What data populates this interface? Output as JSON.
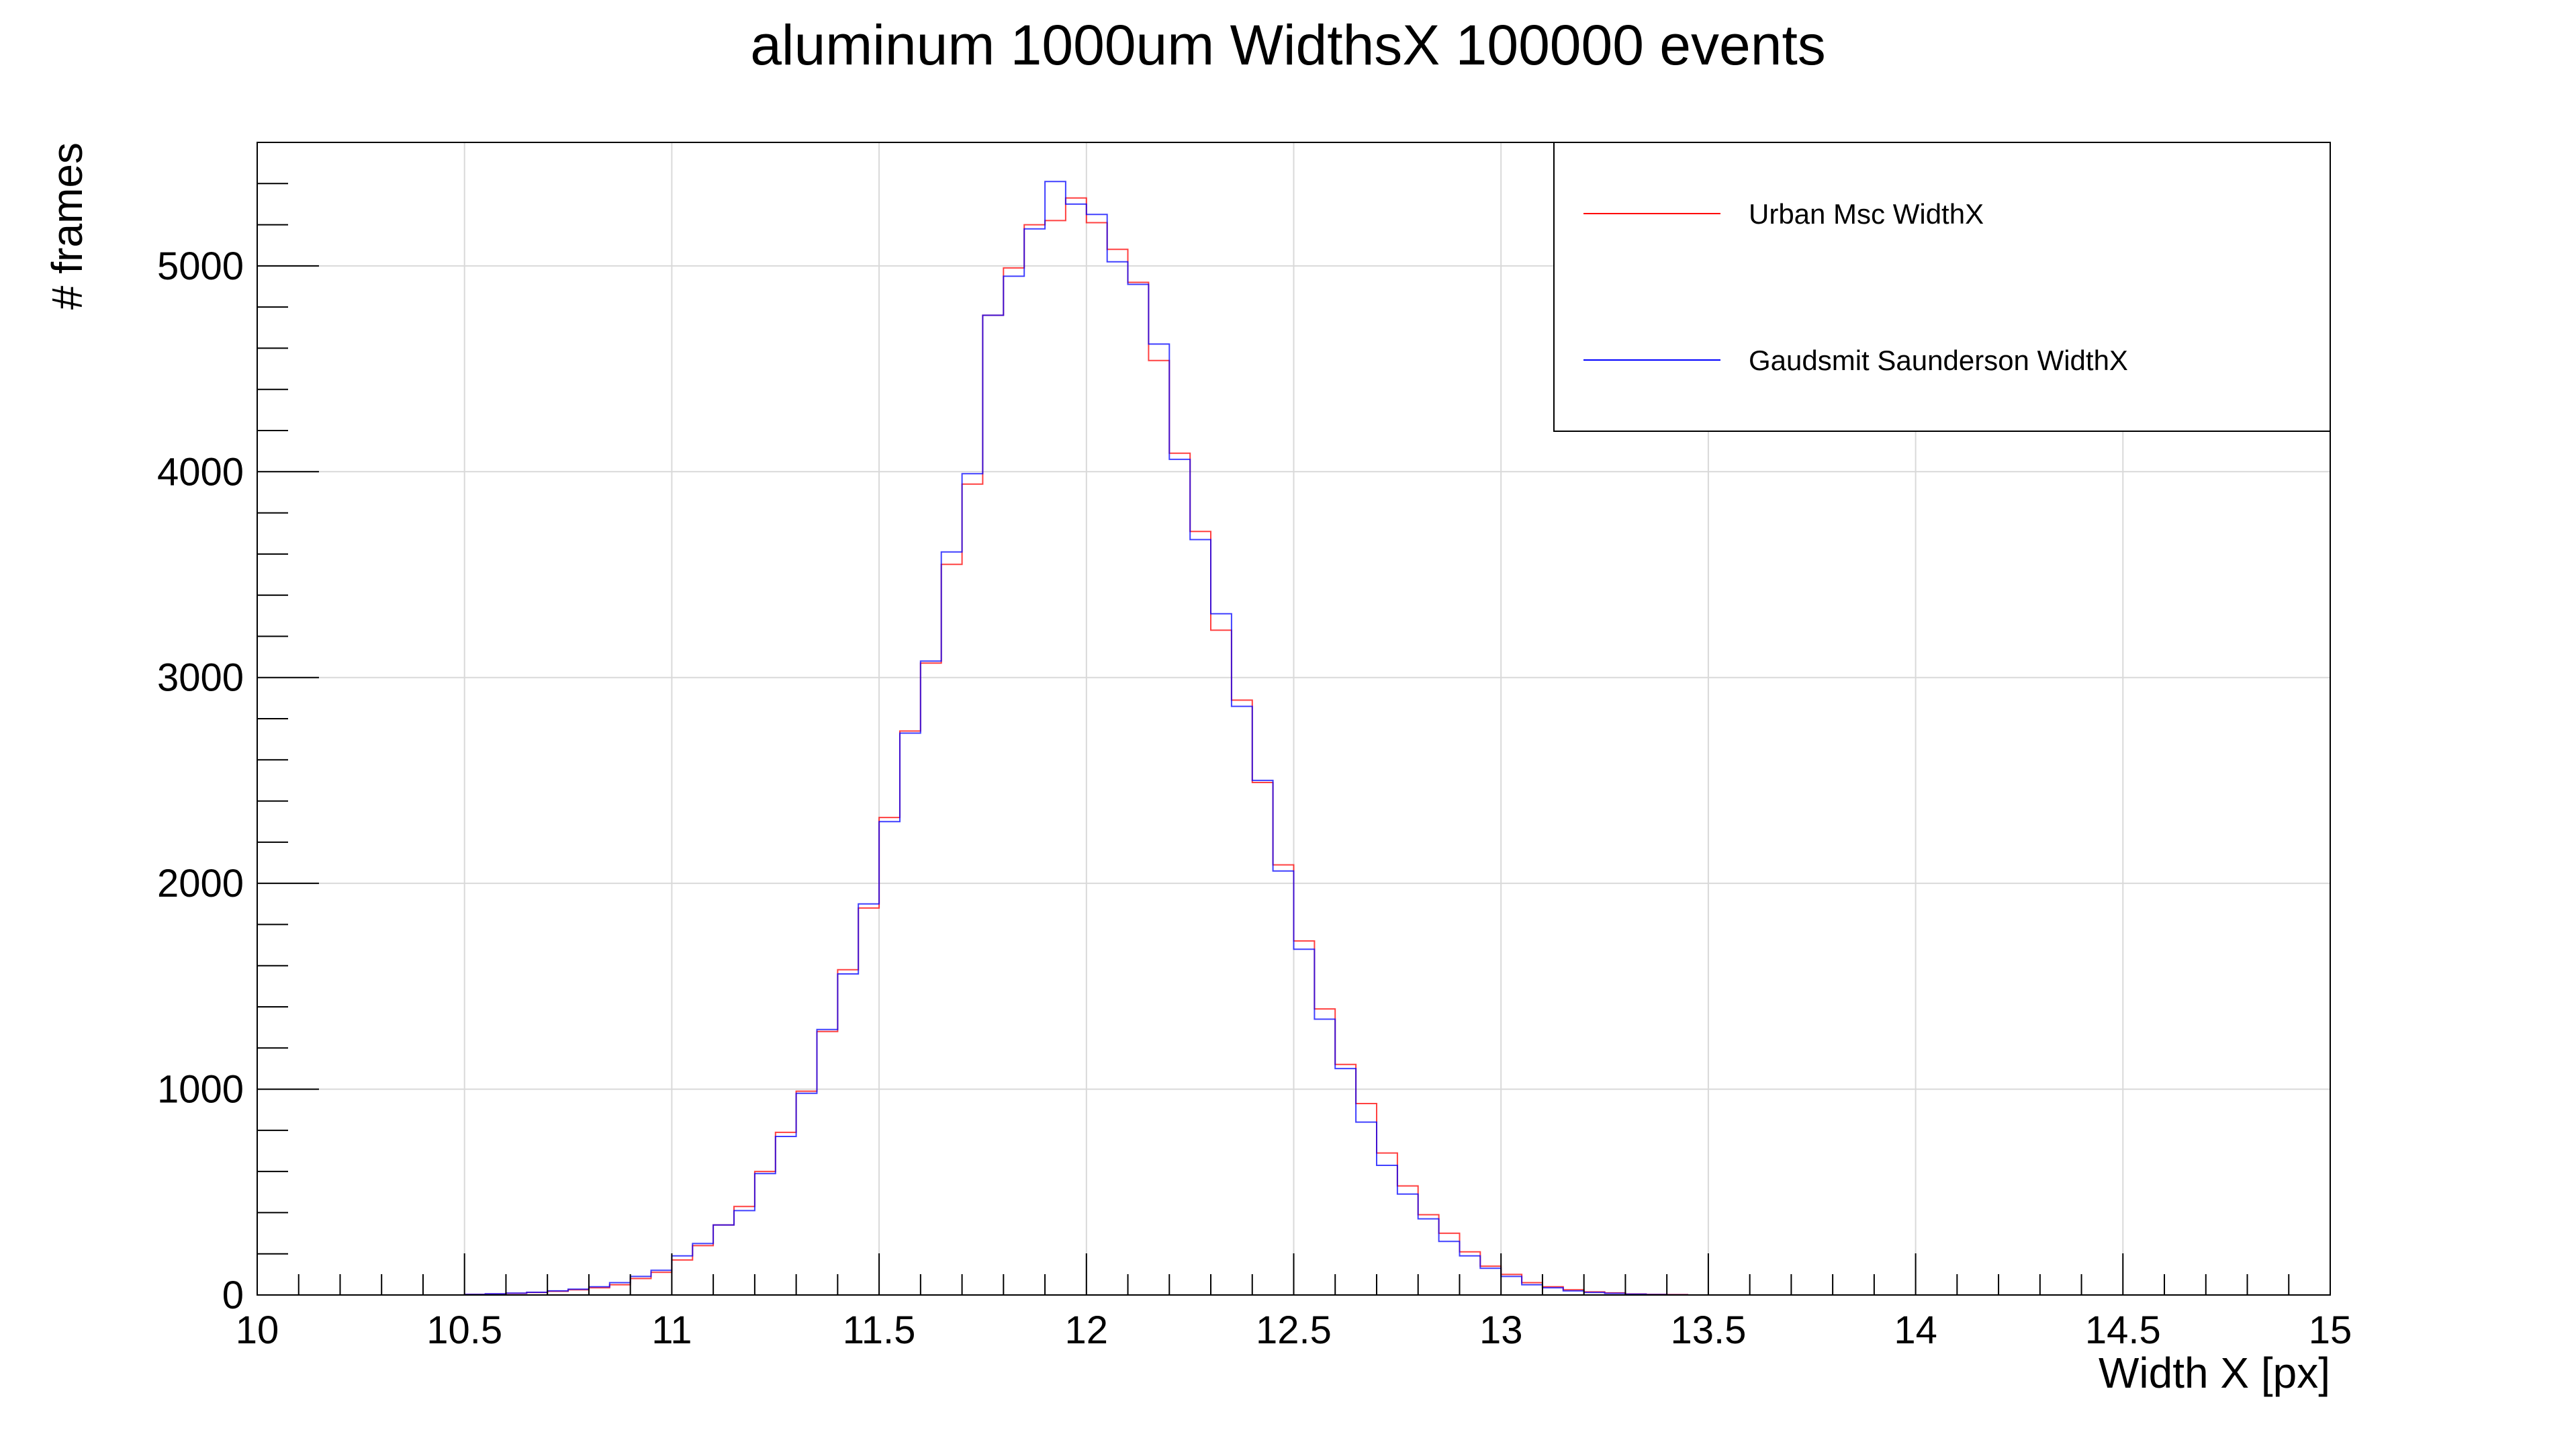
{
  "chart_data": {
    "type": "histogram",
    "title": "aluminum 1000um WidthsX 100000 events",
    "xlabel": "Width X [px]",
    "ylabel": "# frames",
    "xlim": [
      10,
      15
    ],
    "ylim": [
      0,
      5600
    ],
    "bin_width": 0.05,
    "x_ticks": [
      "10",
      "10.5",
      "11",
      "11.5",
      "12",
      "12.5",
      "13",
      "13.5",
      "14",
      "14.5",
      "15"
    ],
    "y_ticks": [
      "0",
      "1000",
      "2000",
      "3000",
      "4000",
      "5000"
    ],
    "grid": true,
    "legend_position": "top-right",
    "series": [
      {
        "name": "Urban Msc WidthX",
        "color": "#ff0000",
        "bin_starts": [
          10.5,
          10.55,
          10.6,
          10.65,
          10.7,
          10.75,
          10.8,
          10.85,
          10.9,
          10.95,
          11,
          11.05,
          11.1,
          11.15,
          11.2,
          11.25,
          11.3,
          11.35,
          11.4,
          11.45,
          11.5,
          11.55,
          11.6,
          11.65,
          11.7,
          11.75,
          11.8,
          11.85,
          11.9,
          11.95,
          12,
          12.05,
          12.1,
          12.15,
          12.2,
          12.25,
          12.3,
          12.35,
          12.4,
          12.45,
          12.5,
          12.55,
          12.6,
          12.65,
          12.7,
          12.75,
          12.8,
          12.85,
          12.9,
          12.95,
          13,
          13.05,
          13.1,
          13.15,
          13.2,
          13.25,
          13.3,
          13.35,
          13.4
        ],
        "values": [
          3,
          5,
          8,
          12,
          18,
          25,
          35,
          50,
          80,
          110,
          170,
          240,
          340,
          430,
          600,
          790,
          990,
          1280,
          1580,
          1880,
          2320,
          2740,
          3070,
          3550,
          3940,
          4760,
          4990,
          5200,
          5220,
          5330,
          5210,
          5080,
          4920,
          4540,
          4090,
          3710,
          3230,
          2890,
          2490,
          2090,
          1720,
          1390,
          1120,
          930,
          690,
          530,
          390,
          300,
          210,
          140,
          100,
          60,
          40,
          25,
          15,
          10,
          5,
          3,
          2
        ]
      },
      {
        "name": "Gaudsmit Saunderson WidthX",
        "color": "#0000ff",
        "bin_starts": [
          10.5,
          10.55,
          10.6,
          10.65,
          10.7,
          10.75,
          10.8,
          10.85,
          10.9,
          10.95,
          11,
          11.05,
          11.1,
          11.15,
          11.2,
          11.25,
          11.3,
          11.35,
          11.4,
          11.45,
          11.5,
          11.55,
          11.6,
          11.65,
          11.7,
          11.75,
          11.8,
          11.85,
          11.9,
          11.95,
          12,
          12.05,
          12.1,
          12.15,
          12.2,
          12.25,
          12.3,
          12.35,
          12.4,
          12.45,
          12.5,
          12.55,
          12.6,
          12.65,
          12.7,
          12.75,
          12.8,
          12.85,
          12.9,
          12.95,
          13,
          13.05,
          13.1,
          13.15,
          13.2,
          13.25,
          13.3,
          13.35,
          13.4
        ],
        "values": [
          3,
          6,
          9,
          13,
          20,
          28,
          40,
          60,
          90,
          120,
          190,
          250,
          340,
          410,
          590,
          770,
          980,
          1290,
          1560,
          1900,
          2300,
          2730,
          3080,
          3610,
          3990,
          4760,
          4950,
          5180,
          5410,
          5300,
          5250,
          5020,
          4910,
          4620,
          4060,
          3670,
          3310,
          2860,
          2500,
          2060,
          1680,
          1340,
          1100,
          840,
          630,
          490,
          370,
          260,
          190,
          130,
          90,
          50,
          35,
          20,
          12,
          8,
          4,
          2,
          1
        ]
      }
    ]
  }
}
